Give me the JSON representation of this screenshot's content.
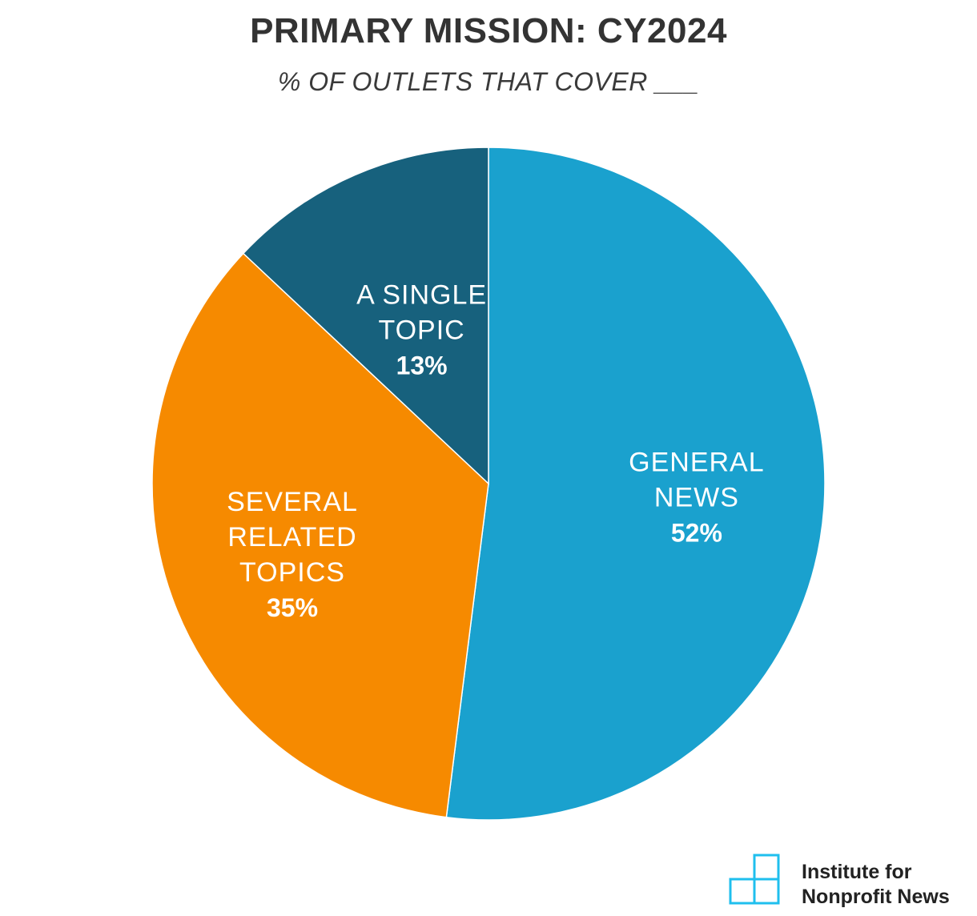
{
  "title": "PRIMARY MISSION: CY2024",
  "subtitle": "% OF OUTLETS THAT COVER ___",
  "chart_data": {
    "type": "pie",
    "title": "PRIMARY MISSION: CY2024",
    "subtitle": "% OF OUTLETS THAT COVER ___",
    "slices": [
      {
        "label_lines": [
          "GENERAL",
          "NEWS"
        ],
        "value": 52,
        "value_label": "52%",
        "color": "#1aa1ce"
      },
      {
        "label_lines": [
          "SEVERAL",
          "RELATED",
          "TOPICS"
        ],
        "value": 35,
        "value_label": "35%",
        "color": "#f68a00"
      },
      {
        "label_lines": [
          "A SINGLE",
          "TOPIC"
        ],
        "value": 13,
        "value_label": "13%",
        "color": "#17617d"
      }
    ],
    "start_angle": "12 o'clock",
    "direction": "clockwise",
    "legend": "none",
    "grid": false
  },
  "logo": {
    "line1": "Institute for",
    "line2": "Nonprofit News",
    "color": "#1fbfee"
  }
}
